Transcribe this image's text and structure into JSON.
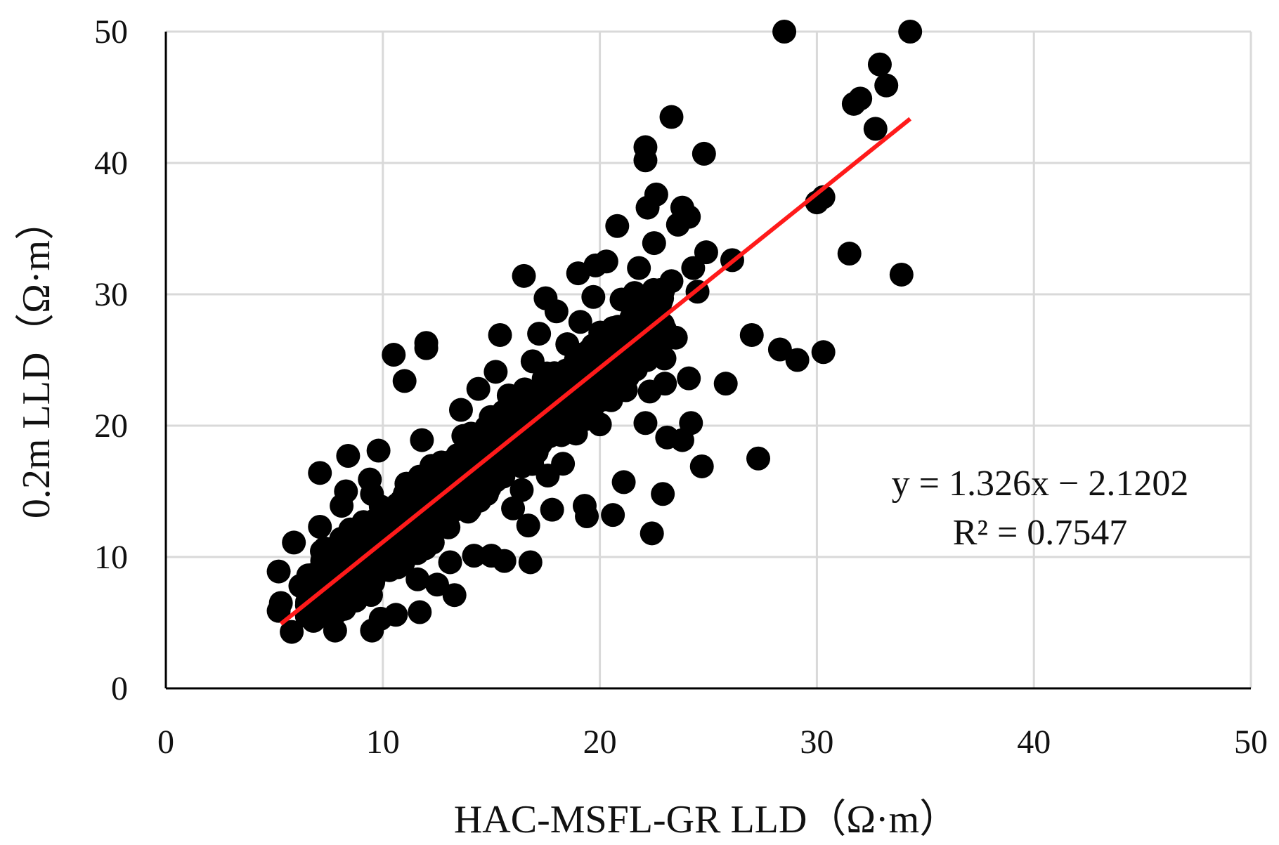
{
  "chart_data": {
    "type": "scatter",
    "title": "",
    "xlabel": "HAC-MSFL-GR LLD（Ω·m）",
    "ylabel": "0.2m LLD（Ω·m）",
    "xlim": [
      0,
      50
    ],
    "ylim": [
      0,
      50
    ],
    "xticks": [
      "0",
      "10",
      "20",
      "30",
      "40",
      "50"
    ],
    "yticks": [
      "0",
      "10",
      "20",
      "30",
      "40",
      "50"
    ],
    "grid": true,
    "point_color": "#000000",
    "trendline_color": "#ff1a1a",
    "trendline": {
      "slope": 1.326,
      "intercept": -2.1202,
      "x_range": [
        5.3,
        34.3
      ]
    },
    "annotation": {
      "equation": "y = 1.326x − 2.1202",
      "r2": "R² = 0.7547"
    },
    "points": [
      [
        5.2,
        8.9
      ],
      [
        5.3,
        6.5
      ],
      [
        5.2,
        5.9
      ],
      [
        5.8,
        4.3
      ],
      [
        5.9,
        11.1
      ],
      [
        6.2,
        7.8
      ],
      [
        6.5,
        5.5
      ],
      [
        6.8,
        6.9
      ],
      [
        7.1,
        16.4
      ],
      [
        7.1,
        12.3
      ],
      [
        7.3,
        9.0
      ],
      [
        7.6,
        6.6
      ],
      [
        7.8,
        4.4
      ],
      [
        7.9,
        8.3
      ],
      [
        8.1,
        13.9
      ],
      [
        8.3,
        15.0
      ],
      [
        8.4,
        17.7
      ],
      [
        8.5,
        12.1
      ],
      [
        8.3,
        6.3
      ],
      [
        8.7,
        9.4
      ],
      [
        9.0,
        10.8
      ],
      [
        9.2,
        7.2
      ],
      [
        9.4,
        15.9
      ],
      [
        9.5,
        14.8
      ],
      [
        9.5,
        4.4
      ],
      [
        9.8,
        18.1
      ],
      [
        9.9,
        5.3
      ],
      [
        10.1,
        12.1
      ],
      [
        10.3,
        9.0
      ],
      [
        10.5,
        25.4
      ],
      [
        10.6,
        5.6
      ],
      [
        11.0,
        23.4
      ],
      [
        11.2,
        13.7
      ],
      [
        11.4,
        10.3
      ],
      [
        11.6,
        8.3
      ],
      [
        11.7,
        5.8
      ],
      [
        11.8,
        18.9
      ],
      [
        12.0,
        26.3
      ],
      [
        12.0,
        25.9
      ],
      [
        12.2,
        15.3
      ],
      [
        12.3,
        11.1
      ],
      [
        12.5,
        7.9
      ],
      [
        12.7,
        17.2
      ],
      [
        12.9,
        12.6
      ],
      [
        13.1,
        9.6
      ],
      [
        13.3,
        7.1
      ],
      [
        13.6,
        21.2
      ],
      [
        13.8,
        16.8
      ],
      [
        14.0,
        13.6
      ],
      [
        14.2,
        10.1
      ],
      [
        14.4,
        22.8
      ],
      [
        14.6,
        18.1
      ],
      [
        14.8,
        14.8
      ],
      [
        15.0,
        10.1
      ],
      [
        15.2,
        24.1
      ],
      [
        15.4,
        26.9
      ],
      [
        15.5,
        19.9
      ],
      [
        15.6,
        9.7
      ],
      [
        15.8,
        22.3
      ],
      [
        16.0,
        13.7
      ],
      [
        16.2,
        17.6
      ],
      [
        16.4,
        15.1
      ],
      [
        16.5,
        31.4
      ],
      [
        16.7,
        20.1
      ],
      [
        16.7,
        12.4
      ],
      [
        16.8,
        9.6
      ],
      [
        16.9,
        24.9
      ],
      [
        17.1,
        18.3
      ],
      [
        17.2,
        27.0
      ],
      [
        17.3,
        22.1
      ],
      [
        17.5,
        29.7
      ],
      [
        17.6,
        16.2
      ],
      [
        17.8,
        13.6
      ],
      [
        17.9,
        24.0
      ],
      [
        18.0,
        28.7
      ],
      [
        18.1,
        20.7
      ],
      [
        18.3,
        17.1
      ],
      [
        18.5,
        26.2
      ],
      [
        18.7,
        22.6
      ],
      [
        18.9,
        19.4
      ],
      [
        19.0,
        31.6
      ],
      [
        19.1,
        27.9
      ],
      [
        19.3,
        24.0
      ],
      [
        19.3,
        13.9
      ],
      [
        19.4,
        13.1
      ],
      [
        19.5,
        21.4
      ],
      [
        19.7,
        29.8
      ],
      [
        19.8,
        32.2
      ],
      [
        20.0,
        20.1
      ],
      [
        20.1,
        26.8
      ],
      [
        20.3,
        32.5
      ],
      [
        20.5,
        23.8
      ],
      [
        20.6,
        13.2
      ],
      [
        20.8,
        35.2
      ],
      [
        21.0,
        29.6
      ],
      [
        21.1,
        15.7
      ],
      [
        21.2,
        22.7
      ],
      [
        21.4,
        27.4
      ],
      [
        21.6,
        30.1
      ],
      [
        21.8,
        32.0
      ],
      [
        22.0,
        25.4
      ],
      [
        22.1,
        20.2
      ],
      [
        22.1,
        41.2
      ],
      [
        22.1,
        40.2
      ],
      [
        22.2,
        36.6
      ],
      [
        22.3,
        22.6
      ],
      [
        22.4,
        11.8
      ],
      [
        22.5,
        33.9
      ],
      [
        22.6,
        37.6
      ],
      [
        22.8,
        27.7
      ],
      [
        22.9,
        14.8
      ],
      [
        23.0,
        23.2
      ],
      [
        23.1,
        19.1
      ],
      [
        23.3,
        43.5
      ],
      [
        23.3,
        31.0
      ],
      [
        23.5,
        26.7
      ],
      [
        23.6,
        35.3
      ],
      [
        23.8,
        36.6
      ],
      [
        23.8,
        18.9
      ],
      [
        24.1,
        35.9
      ],
      [
        24.1,
        23.6
      ],
      [
        24.2,
        20.2
      ],
      [
        24.3,
        32.0
      ],
      [
        24.5,
        30.2
      ],
      [
        24.7,
        16.9
      ],
      [
        24.8,
        40.7
      ],
      [
        24.9,
        33.2
      ],
      [
        25.8,
        23.2
      ],
      [
        26.1,
        32.6
      ],
      [
        27.0,
        26.9
      ],
      [
        27.3,
        17.5
      ],
      [
        28.3,
        25.8
      ],
      [
        28.5,
        50.0
      ],
      [
        29.1,
        25.0
      ],
      [
        30.0,
        37.0
      ],
      [
        30.3,
        37.4
      ],
      [
        30.3,
        25.6
      ],
      [
        31.5,
        33.1
      ],
      [
        31.7,
        44.5
      ],
      [
        32.0,
        44.9
      ],
      [
        32.7,
        42.6
      ],
      [
        32.9,
        47.5
      ],
      [
        33.2,
        45.9
      ],
      [
        33.9,
        31.5
      ],
      [
        34.3,
        50.0
      ]
    ],
    "cluster_band": {
      "x_range": [
        6.5,
        23.0
      ],
      "half_width": 2.1,
      "count": 700,
      "seed": 7
    }
  }
}
